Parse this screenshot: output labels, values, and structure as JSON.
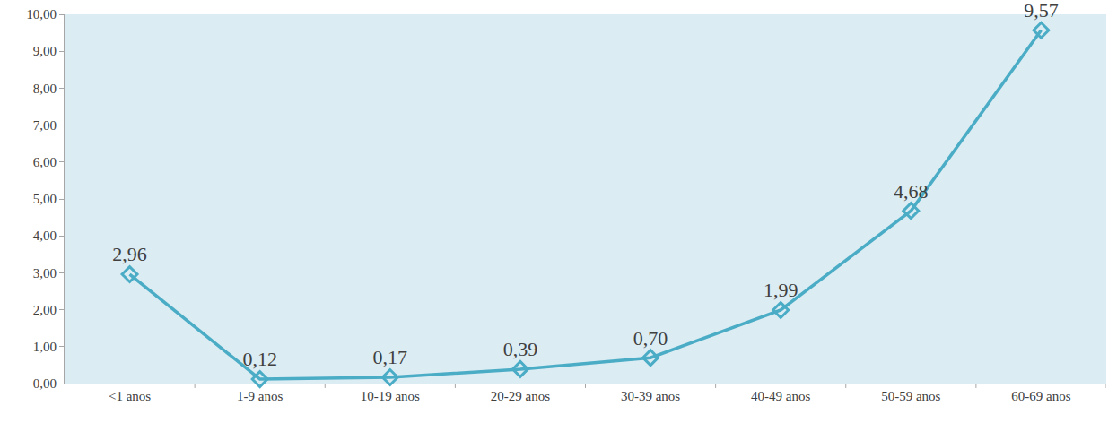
{
  "chart_data": {
    "type": "line",
    "categories": [
      "<1 anos",
      "1-9 anos",
      "10-19 anos",
      "20-29 anos",
      "30-39 anos",
      "40-49 anos",
      "50-59 anos",
      "60-69 anos"
    ],
    "values": [
      2.96,
      0.12,
      0.17,
      0.39,
      0.7,
      1.99,
      4.68,
      9.57
    ],
    "value_labels": [
      "2,96",
      "0,12",
      "0,17",
      "0,39",
      "0,70",
      "1,99",
      "4,68",
      "9,57"
    ],
    "color": "#4bacc6",
    "marker": "diamond-open",
    "line_style": "solid",
    "data_labels": true,
    "grid": false,
    "ylim": [
      0,
      10
    ],
    "yticks": [
      {
        "value": 0,
        "label": "0,00"
      },
      {
        "value": 1,
        "label": "1,00"
      },
      {
        "value": 2,
        "label": "2,00"
      },
      {
        "value": 3,
        "label": "3,00"
      },
      {
        "value": 4,
        "label": "4,00"
      },
      {
        "value": 5,
        "label": "5,00"
      },
      {
        "value": 6,
        "label": "6,00"
      },
      {
        "value": 7,
        "label": "7,00"
      },
      {
        "value": 8,
        "label": "8,00"
      },
      {
        "value": 9,
        "label": "9,00"
      },
      {
        "value": 10,
        "label": "10,00"
      }
    ]
  }
}
